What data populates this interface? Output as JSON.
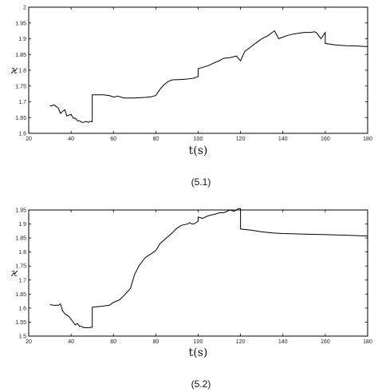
{
  "chart_data": [
    {
      "type": "line",
      "caption": "(5.1)",
      "xlabel": "t(s)",
      "ylabel": "ϰ",
      "xlim": [
        20,
        180
      ],
      "ylim": [
        1.6,
        2.0
      ],
      "xticks": [
        "20",
        "40",
        "60",
        "80",
        "100",
        "120",
        "140",
        "160",
        "180"
      ],
      "yticks": [
        "1.6",
        "1.65",
        "1.7",
        "1.75",
        "1.8",
        "1.85",
        "1.9",
        "1.95",
        "2"
      ],
      "grid": false,
      "series": [
        {
          "x": [
            30,
            32,
            33,
            34,
            35,
            36,
            37,
            38,
            40,
            41,
            42,
            43,
            44,
            45,
            46,
            47,
            48,
            49,
            50,
            50,
            55,
            58,
            60,
            62,
            65,
            70,
            75,
            78,
            80,
            82,
            84,
            86,
            88,
            90,
            95,
            98,
            100,
            100,
            105,
            108,
            110,
            112,
            115,
            118,
            120,
            121,
            122,
            125,
            128,
            130,
            133,
            135,
            136,
            138,
            140,
            142,
            145,
            148,
            150,
            153,
            155,
            156,
            158,
            160,
            160,
            165,
            170,
            175,
            180
          ],
          "y": [
            1.686,
            1.69,
            1.685,
            1.68,
            1.663,
            1.67,
            1.675,
            1.655,
            1.66,
            1.648,
            1.648,
            1.64,
            1.64,
            1.635,
            1.635,
            1.638,
            1.635,
            1.638,
            1.637,
            1.722,
            1.722,
            1.72,
            1.715,
            1.718,
            1.712,
            1.712,
            1.714,
            1.716,
            1.72,
            1.74,
            1.755,
            1.765,
            1.77,
            1.77,
            1.772,
            1.775,
            1.78,
            1.805,
            1.815,
            1.825,
            1.83,
            1.838,
            1.84,
            1.845,
            1.83,
            1.845,
            1.86,
            1.875,
            1.89,
            1.9,
            1.91,
            1.92,
            1.925,
            1.9,
            1.905,
            1.91,
            1.915,
            1.918,
            1.92,
            1.92,
            1.922,
            1.918,
            1.9,
            1.92,
            1.885,
            1.88,
            1.878,
            1.877,
            1.875
          ]
        }
      ]
    },
    {
      "type": "line",
      "caption": "(5.2)",
      "xlabel": "t(s)",
      "ylabel": "ϰ",
      "xlim": [
        20,
        180
      ],
      "ylim": [
        1.5,
        1.95
      ],
      "xticks": [
        "20",
        "40",
        "60",
        "80",
        "100",
        "120",
        "140",
        "160",
        "180"
      ],
      "yticks": [
        "1.5",
        "1.55",
        "1.6",
        "1.65",
        "1.7",
        "1.75",
        "1.8",
        "1.85",
        "1.9",
        "1.95"
      ],
      "grid": false,
      "series": [
        {
          "x": [
            30,
            32,
            34,
            35,
            36,
            37,
            38,
            39,
            40,
            41,
            42,
            43,
            44,
            45,
            46,
            48,
            50,
            50,
            55,
            58,
            60,
            63,
            65,
            68,
            70,
            72,
            75,
            78,
            80,
            82,
            85,
            88,
            90,
            92,
            95,
            96,
            97,
            98,
            100,
            100,
            102,
            105,
            108,
            110,
            112,
            115,
            117,
            119,
            120,
            120,
            125,
            130,
            135,
            140,
            150,
            160,
            170,
            180
          ],
          "y": [
            1.612,
            1.61,
            1.61,
            1.615,
            1.59,
            1.58,
            1.575,
            1.57,
            1.56,
            1.55,
            1.54,
            1.545,
            1.535,
            1.535,
            1.53,
            1.53,
            1.532,
            1.603,
            1.607,
            1.61,
            1.62,
            1.63,
            1.645,
            1.67,
            1.72,
            1.75,
            1.78,
            1.795,
            1.805,
            1.83,
            1.85,
            1.87,
            1.885,
            1.895,
            1.9,
            1.905,
            1.9,
            1.9,
            1.91,
            1.925,
            1.92,
            1.93,
            1.935,
            1.94,
            1.94,
            1.95,
            1.945,
            1.955,
            1.955,
            1.882,
            1.878,
            1.872,
            1.868,
            1.866,
            1.864,
            1.862,
            1.86,
            1.857
          ]
        }
      ]
    }
  ]
}
